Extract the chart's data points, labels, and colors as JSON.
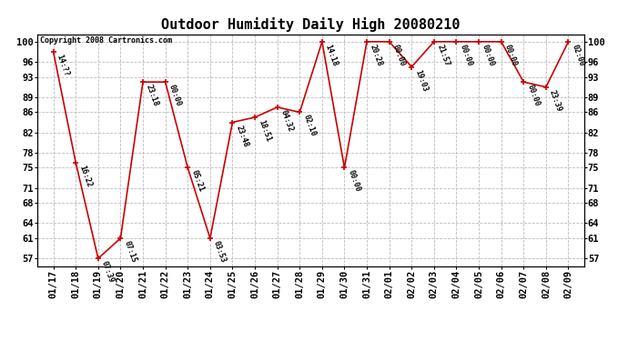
{
  "title": "Outdoor Humidity Daily High 20080210",
  "copyright": "Copyright 2008 Cartronics.com",
  "x_labels": [
    "01/17",
    "01/18",
    "01/19",
    "01/20",
    "01/21",
    "01/22",
    "01/23",
    "01/24",
    "01/25",
    "01/26",
    "01/27",
    "01/28",
    "01/29",
    "01/30",
    "01/31",
    "02/01",
    "02/02",
    "02/03",
    "02/04",
    "02/05",
    "02/06",
    "02/07",
    "02/08",
    "02/09"
  ],
  "y_values": [
    98,
    76,
    57,
    61,
    92,
    92,
    75,
    61,
    84,
    85,
    87,
    86,
    100,
    75,
    100,
    100,
    95,
    100,
    100,
    100,
    100,
    92,
    91,
    100
  ],
  "time_labels": [
    "14:??",
    "16:22",
    "07:39",
    "07:15",
    "23:18",
    "00:00",
    "05:21",
    "03:53",
    "23:48",
    "18:51",
    "04:32",
    "02:10",
    "14:18",
    "00:00",
    "20:28",
    "00:00",
    "19:03",
    "21:57",
    "00:00",
    "00:00",
    "00:00",
    "00:00",
    "23:39",
    "02:00"
  ],
  "y_ticks": [
    57,
    61,
    64,
    68,
    71,
    75,
    78,
    82,
    86,
    89,
    93,
    96,
    100
  ],
  "ylim": [
    55.5,
    101.5
  ],
  "line_color": "#cc0000",
  "marker_color": "#cc0000",
  "bg_color": "#ffffff",
  "grid_color": "#bbbbbb",
  "title_fontsize": 11,
  "tick_fontsize": 7.5,
  "annot_fontsize": 6.0
}
